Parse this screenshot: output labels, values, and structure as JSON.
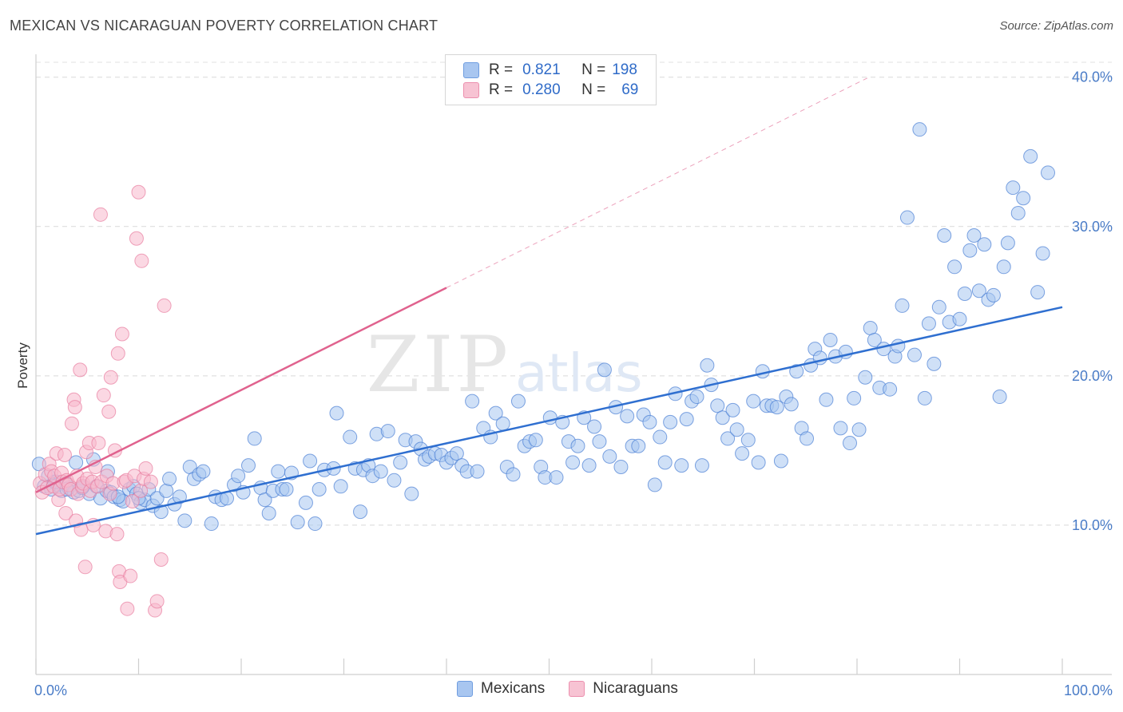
{
  "header": {
    "title": "MEXICAN VS NICARAGUAN POVERTY CORRELATION CHART",
    "source": "Source: ZipAtlas.com"
  },
  "watermark": "ZIPatlas",
  "legend": {
    "rows": [
      {
        "r_label": "R =",
        "r_value": "0.821",
        "n_label": "N =",
        "n_value": "198",
        "color": "#a8c6f0"
      },
      {
        "r_label": "R =",
        "r_value": "0.280",
        "n_label": "N =",
        "n_value": "69",
        "color": "#f7b8cc"
      }
    ]
  },
  "bottom_legend": [
    {
      "label": "Mexicans",
      "color": "#a8c6f0"
    },
    {
      "label": "Nicaraguans",
      "color": "#f7b8cc"
    }
  ],
  "chart_data": {
    "type": "scatter",
    "title": "MEXICAN VS NICARAGUAN POVERTY CORRELATION CHART",
    "ylabel": "Poverty",
    "xlabel": "",
    "x_tick_labels": [
      "0.0%",
      "100.0%"
    ],
    "y_tick_labels": [
      "10.0%",
      "20.0%",
      "30.0%",
      "40.0%"
    ],
    "y_ticks": [
      10,
      20,
      30,
      40
    ],
    "xlim": [
      0,
      100
    ],
    "ylim": [
      0,
      41
    ],
    "grid": true,
    "legend_position": "top-center",
    "series": [
      {
        "name": "Mexicans",
        "color": "#4a7fd4",
        "fill": "#a8c6f0",
        "trend": {
          "x0": 0,
          "y0": 9.4,
          "x1": 100,
          "y1": 24.6,
          "color": "#2f6fd0"
        },
        "points": [
          [
            0.3,
            14.1
          ],
          [
            0.8,
            12.6
          ],
          [
            1.2,
            13.3
          ],
          [
            1.5,
            12.4
          ],
          [
            1.8,
            12.9
          ],
          [
            2.1,
            12.7
          ],
          [
            2.5,
            12.3
          ],
          [
            2.9,
            12.8
          ],
          [
            3.2,
            12.5
          ],
          [
            3.7,
            12.2
          ],
          [
            3.9,
            14.2
          ],
          [
            4.2,
            12.3
          ],
          [
            4.6,
            12.6
          ],
          [
            5.2,
            12.1
          ],
          [
            5.6,
            14.4
          ],
          [
            5.9,
            12.6
          ],
          [
            6.3,
            11.8
          ],
          [
            6.9,
            12.3
          ],
          [
            7.3,
            12.2
          ],
          [
            7.6,
            11.9
          ],
          [
            8.2,
            11.7
          ],
          [
            8.5,
            11.6
          ],
          [
            9.1,
            12.4
          ],
          [
            9.5,
            12.6
          ],
          [
            9.8,
            12.1
          ],
          [
            10.2,
            11.5
          ],
          [
            10.6,
            11.7
          ],
          [
            11.0,
            12.4
          ],
          [
            11.4,
            11.3
          ],
          [
            11.8,
            11.8
          ],
          [
            12.2,
            10.9
          ],
          [
            12.7,
            12.3
          ],
          [
            13.0,
            13.1
          ],
          [
            13.5,
            11.4
          ],
          [
            14.0,
            11.9
          ],
          [
            14.5,
            10.3
          ],
          [
            15.0,
            13.9
          ],
          [
            15.4,
            13.1
          ],
          [
            15.9,
            13.4
          ],
          [
            16.3,
            13.6
          ],
          [
            17.1,
            10.1
          ],
          [
            17.5,
            11.9
          ],
          [
            18.1,
            11.7
          ],
          [
            18.6,
            11.8
          ],
          [
            19.3,
            12.7
          ],
          [
            19.7,
            13.3
          ],
          [
            20.2,
            12.2
          ],
          [
            20.7,
            14.0
          ],
          [
            21.3,
            15.8
          ],
          [
            21.9,
            12.5
          ],
          [
            22.3,
            11.7
          ],
          [
            22.7,
            10.8
          ],
          [
            23.1,
            12.3
          ],
          [
            23.6,
            13.6
          ],
          [
            24.0,
            12.4
          ],
          [
            24.4,
            12.4
          ],
          [
            24.9,
            13.5
          ],
          [
            25.5,
            10.2
          ],
          [
            26.3,
            11.5
          ],
          [
            26.7,
            14.3
          ],
          [
            27.2,
            10.1
          ],
          [
            27.6,
            12.4
          ],
          [
            28.1,
            13.7
          ],
          [
            29.0,
            13.8
          ],
          [
            29.3,
            17.5
          ],
          [
            29.7,
            12.6
          ],
          [
            30.6,
            15.9
          ],
          [
            31.1,
            13.8
          ],
          [
            31.6,
            10.9
          ],
          [
            31.9,
            13.7
          ],
          [
            32.4,
            14.0
          ],
          [
            32.8,
            13.3
          ],
          [
            33.2,
            16.1
          ],
          [
            33.6,
            13.6
          ],
          [
            34.3,
            16.3
          ],
          [
            34.9,
            13.0
          ],
          [
            35.5,
            14.2
          ],
          [
            36.0,
            15.7
          ],
          [
            36.6,
            12.1
          ],
          [
            37.0,
            15.6
          ],
          [
            37.5,
            15.1
          ],
          [
            37.9,
            14.4
          ],
          [
            38.3,
            14.6
          ],
          [
            38.9,
            14.8
          ],
          [
            39.5,
            14.7
          ],
          [
            40.0,
            14.2
          ],
          [
            40.5,
            14.5
          ],
          [
            41.0,
            14.8
          ],
          [
            41.5,
            14.0
          ],
          [
            42.0,
            13.6
          ],
          [
            42.5,
            18.3
          ],
          [
            43.0,
            13.6
          ],
          [
            43.6,
            16.5
          ],
          [
            44.3,
            15.9
          ],
          [
            44.8,
            17.5
          ],
          [
            45.5,
            16.8
          ],
          [
            45.9,
            13.9
          ],
          [
            46.5,
            13.4
          ],
          [
            47.0,
            18.3
          ],
          [
            47.6,
            15.3
          ],
          [
            48.1,
            15.6
          ],
          [
            48.7,
            15.7
          ],
          [
            49.2,
            13.9
          ],
          [
            49.6,
            13.2
          ],
          [
            50.1,
            17.2
          ],
          [
            50.7,
            13.2
          ],
          [
            51.3,
            16.9
          ],
          [
            51.9,
            15.6
          ],
          [
            52.3,
            14.2
          ],
          [
            52.8,
            15.3
          ],
          [
            53.4,
            17.2
          ],
          [
            53.9,
            14.0
          ],
          [
            54.4,
            16.6
          ],
          [
            54.9,
            15.6
          ],
          [
            55.4,
            20.4
          ],
          [
            55.9,
            14.6
          ],
          [
            56.5,
            17.9
          ],
          [
            57.0,
            13.9
          ],
          [
            57.6,
            17.3
          ],
          [
            58.1,
            15.3
          ],
          [
            58.7,
            15.3
          ],
          [
            59.2,
            17.4
          ],
          [
            59.8,
            16.9
          ],
          [
            60.3,
            12.7
          ],
          [
            60.8,
            15.9
          ],
          [
            61.3,
            14.2
          ],
          [
            61.8,
            16.9
          ],
          [
            62.3,
            18.8
          ],
          [
            62.9,
            14.0
          ],
          [
            63.4,
            17.1
          ],
          [
            63.9,
            18.3
          ],
          [
            64.4,
            18.6
          ],
          [
            64.9,
            14.0
          ],
          [
            65.4,
            20.7
          ],
          [
            65.8,
            19.4
          ],
          [
            66.4,
            18.0
          ],
          [
            66.9,
            17.2
          ],
          [
            67.4,
            15.8
          ],
          [
            67.9,
            17.7
          ],
          [
            68.3,
            16.4
          ],
          [
            68.8,
            14.8
          ],
          [
            69.4,
            15.7
          ],
          [
            69.9,
            18.3
          ],
          [
            70.4,
            14.2
          ],
          [
            70.8,
            20.3
          ],
          [
            71.2,
            18.0
          ],
          [
            71.7,
            18.0
          ],
          [
            72.2,
            17.9
          ],
          [
            72.6,
            14.3
          ],
          [
            73.1,
            18.6
          ],
          [
            73.6,
            18.1
          ],
          [
            74.1,
            20.3
          ],
          [
            74.6,
            16.5
          ],
          [
            75.1,
            15.8
          ],
          [
            75.5,
            20.7
          ],
          [
            75.9,
            21.8
          ],
          [
            76.4,
            21.2
          ],
          [
            77.0,
            18.4
          ],
          [
            77.4,
            22.4
          ],
          [
            77.9,
            21.3
          ],
          [
            78.4,
            16.5
          ],
          [
            78.9,
            21.6
          ],
          [
            79.3,
            15.5
          ],
          [
            79.7,
            18.5
          ],
          [
            80.2,
            16.4
          ],
          [
            80.8,
            19.9
          ],
          [
            81.3,
            23.2
          ],
          [
            81.7,
            22.4
          ],
          [
            82.2,
            19.2
          ],
          [
            82.6,
            21.8
          ],
          [
            83.2,
            19.1
          ],
          [
            83.7,
            21.3
          ],
          [
            84.0,
            22.0
          ],
          [
            84.4,
            24.7
          ],
          [
            84.9,
            30.6
          ],
          [
            85.6,
            21.4
          ],
          [
            86.1,
            36.5
          ],
          [
            86.6,
            18.5
          ],
          [
            87.0,
            23.5
          ],
          [
            87.5,
            20.8
          ],
          [
            88.0,
            24.6
          ],
          [
            88.5,
            29.4
          ],
          [
            89.0,
            23.6
          ],
          [
            89.5,
            27.3
          ],
          [
            90.0,
            23.8
          ],
          [
            90.5,
            25.5
          ],
          [
            91.0,
            28.4
          ],
          [
            91.4,
            29.4
          ],
          [
            91.9,
            25.7
          ],
          [
            92.4,
            28.8
          ],
          [
            92.8,
            25.1
          ],
          [
            93.3,
            25.4
          ],
          [
            93.9,
            18.6
          ],
          [
            94.3,
            27.3
          ],
          [
            94.7,
            28.9
          ],
          [
            95.2,
            32.6
          ],
          [
            95.7,
            30.9
          ],
          [
            96.2,
            31.9
          ],
          [
            96.9,
            34.7
          ],
          [
            97.6,
            25.6
          ],
          [
            98.1,
            28.2
          ],
          [
            98.6,
            33.6
          ],
          [
            2.0,
            12.9
          ],
          [
            3.0,
            12.4
          ],
          [
            4.5,
            12.5
          ],
          [
            7.0,
            13.6
          ],
          [
            8.0,
            11.9
          ],
          [
            10.0,
            11.8
          ]
        ]
      },
      {
        "name": "Nicaraguans",
        "color": "#e87da0",
        "fill": "#f7b8cc",
        "trend": {
          "x0": 0,
          "y0": 12.2,
          "x1": 40,
          "y1": 25.9,
          "dash_to_x": 81,
          "color": "#e0628e"
        },
        "points": [
          [
            0.4,
            12.8
          ],
          [
            0.6,
            12.2
          ],
          [
            0.9,
            13.4
          ],
          [
            1.1,
            12.5
          ],
          [
            1.3,
            14.1
          ],
          [
            1.5,
            13.6
          ],
          [
            1.7,
            12.6
          ],
          [
            1.8,
            13.3
          ],
          [
            2.0,
            14.8
          ],
          [
            2.2,
            11.7
          ],
          [
            2.3,
            12.4
          ],
          [
            2.5,
            13.5
          ],
          [
            2.6,
            12.9
          ],
          [
            2.8,
            14.7
          ],
          [
            2.9,
            10.8
          ],
          [
            3.0,
            13.0
          ],
          [
            3.2,
            12.7
          ],
          [
            3.4,
            12.4
          ],
          [
            3.5,
            16.8
          ],
          [
            3.7,
            18.4
          ],
          [
            3.8,
            17.9
          ],
          [
            3.9,
            10.3
          ],
          [
            4.0,
            13.3
          ],
          [
            4.1,
            12.1
          ],
          [
            4.3,
            20.4
          ],
          [
            4.4,
            9.7
          ],
          [
            4.5,
            12.6
          ],
          [
            4.6,
            12.8
          ],
          [
            4.8,
            7.2
          ],
          [
            4.9,
            14.9
          ],
          [
            5.0,
            13.1
          ],
          [
            5.2,
            15.5
          ],
          [
            5.3,
            12.3
          ],
          [
            5.5,
            12.9
          ],
          [
            5.6,
            10.0
          ],
          [
            5.8,
            13.9
          ],
          [
            6.0,
            12.6
          ],
          [
            6.1,
            15.5
          ],
          [
            6.3,
            30.8
          ],
          [
            6.4,
            12.9
          ],
          [
            6.6,
            18.7
          ],
          [
            6.8,
            9.6
          ],
          [
            6.9,
            13.3
          ],
          [
            7.1,
            17.6
          ],
          [
            7.2,
            12.1
          ],
          [
            7.3,
            19.9
          ],
          [
            7.5,
            12.8
          ],
          [
            7.7,
            15.0
          ],
          [
            7.9,
            9.4
          ],
          [
            8.0,
            21.5
          ],
          [
            8.1,
            6.9
          ],
          [
            8.2,
            6.2
          ],
          [
            8.4,
            22.8
          ],
          [
            8.6,
            12.9
          ],
          [
            8.8,
            13.0
          ],
          [
            8.9,
            4.4
          ],
          [
            9.2,
            6.6
          ],
          [
            9.4,
            11.6
          ],
          [
            9.6,
            13.3
          ],
          [
            9.8,
            29.2
          ],
          [
            10.0,
            32.3
          ],
          [
            10.2,
            12.3
          ],
          [
            10.3,
            27.7
          ],
          [
            10.5,
            13.1
          ],
          [
            10.7,
            13.8
          ],
          [
            11.2,
            12.9
          ],
          [
            11.6,
            4.3
          ],
          [
            11.8,
            4.9
          ],
          [
            12.2,
            7.7
          ],
          [
            12.5,
            24.7
          ]
        ]
      }
    ]
  }
}
